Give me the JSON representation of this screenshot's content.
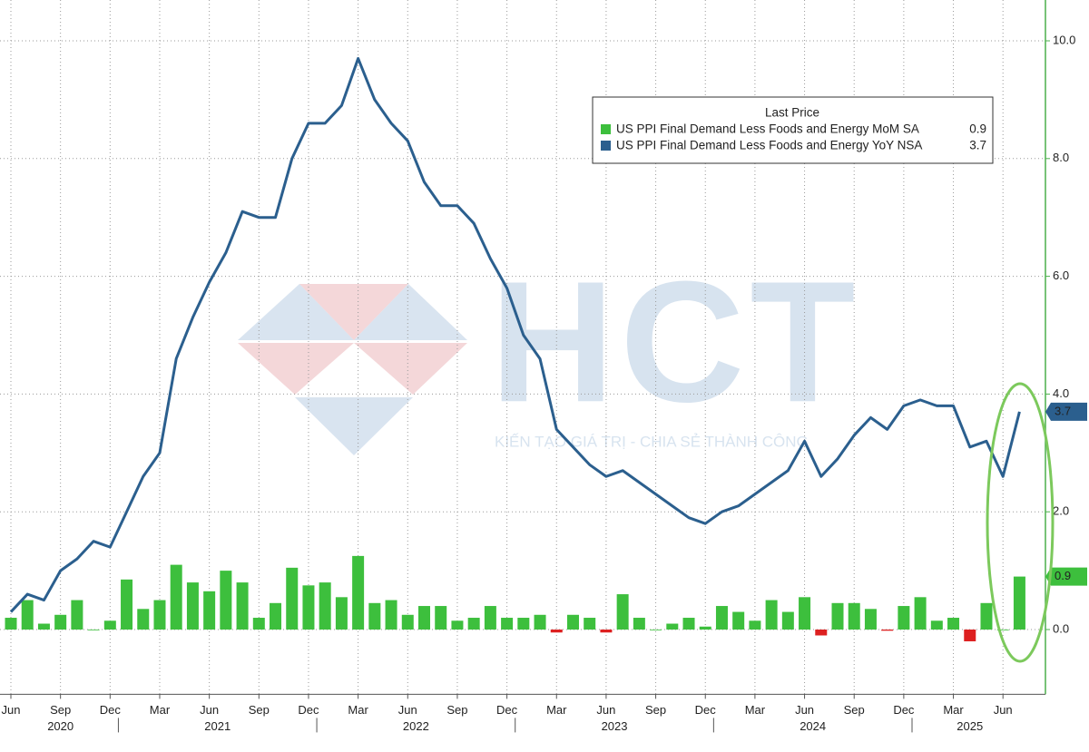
{
  "chart_data": {
    "type": "bar",
    "legend_title": "Last Price",
    "categories": [
      "Jun",
      null,
      null,
      "Sep",
      null,
      null,
      "Dec",
      null,
      null,
      "Mar",
      null,
      null,
      "Jun",
      null,
      null,
      "Sep",
      null,
      null,
      "Dec",
      null,
      null,
      "Mar",
      null,
      null,
      "Jun",
      null,
      null,
      "Sep",
      null,
      null,
      "Dec",
      null,
      null,
      "Mar",
      null,
      null,
      "Jun",
      null,
      null,
      "Sep",
      null,
      null,
      "Dec",
      null,
      null,
      "Mar",
      null,
      null,
      "Jun",
      null,
      null,
      "Sep",
      null,
      null,
      "Dec",
      null,
      null,
      "Mar",
      null,
      null,
      "Jun",
      null
    ],
    "years": [
      "2020",
      "2021",
      "2022",
      "2023",
      "2024",
      "2025"
    ],
    "series": [
      {
        "name": "US PPI Final Demand Less Foods and Energy MoM SA",
        "type": "bar",
        "color": "#3dbf3d",
        "negative_color": "#dd2020",
        "values": [
          0.2,
          0.5,
          0.1,
          0.25,
          0.5,
          0.0,
          0.15,
          0.85,
          0.35,
          0.5,
          1.1,
          0.8,
          0.65,
          1.0,
          0.8,
          0.2,
          0.45,
          1.05,
          0.75,
          0.8,
          0.55,
          1.25,
          0.45,
          0.5,
          0.25,
          0.4,
          0.4,
          0.15,
          0.2,
          0.4,
          0.2,
          0.2,
          0.25,
          -0.05,
          0.25,
          0.2,
          -0.05,
          0.6,
          0.2,
          0.0,
          0.1,
          0.2,
          0.05,
          0.4,
          0.3,
          0.15,
          0.5,
          0.3,
          0.55,
          -0.1,
          0.45,
          0.45,
          0.35,
          -0.02,
          0.4,
          0.55,
          0.15,
          0.2,
          -0.2,
          0.45,
          0.0,
          0.9
        ]
      },
      {
        "name": "US PPI Final Demand Less Foods and Energy YoY NSA",
        "type": "line",
        "color": "#2b5f8e",
        "values": [
          0.3,
          0.6,
          0.5,
          1.0,
          1.2,
          1.5,
          1.4,
          2.0,
          2.6,
          3.0,
          4.6,
          5.3,
          5.9,
          6.4,
          7.1,
          7.0,
          7.0,
          8.0,
          8.6,
          8.6,
          8.9,
          9.7,
          9.0,
          8.6,
          8.3,
          7.6,
          7.2,
          7.2,
          6.9,
          6.3,
          5.8,
          5.0,
          4.6,
          3.4,
          3.1,
          2.8,
          2.6,
          2.7,
          2.5,
          2.3,
          2.1,
          1.9,
          1.8,
          2.0,
          2.1,
          2.3,
          2.5,
          2.7,
          3.2,
          2.6,
          2.9,
          3.3,
          3.6,
          3.4,
          3.8,
          3.9,
          3.8,
          3.8,
          3.1,
          3.2,
          2.6,
          3.7
        ]
      }
    ],
    "ylim": [
      -1.1,
      10.5
    ],
    "yticks": [
      {
        "value": 0,
        "label": "0.0"
      },
      {
        "value": 2,
        "label": "2.0"
      },
      {
        "value": 4,
        "label": "4.0"
      },
      {
        "value": 6,
        "label": "6.0"
      },
      {
        "value": 8,
        "label": "8.0"
      },
      {
        "value": 10,
        "label": "10.0"
      }
    ],
    "grid": true,
    "legend": "upper right",
    "axis_color": "#4caf4c",
    "watermark": {
      "logo": "HCT",
      "slogan": "KIẾN TẠO GIÁ TRỊ - CHIA SẺ THÀNH CÔNG"
    }
  }
}
